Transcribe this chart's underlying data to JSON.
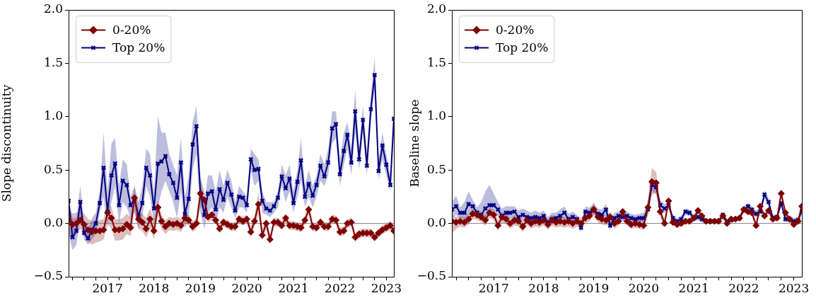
{
  "chart_data": [
    {
      "type": "line",
      "ylabel": "Slope discontinuity",
      "legend": "top left",
      "grid": false,
      "x": [
        "2016-03",
        "2016-04",
        "2016-05",
        "2016-06",
        "2016-07",
        "2016-08",
        "2016-09",
        "2016-10",
        "2016-11",
        "2016-12",
        "2017-01",
        "2017-02",
        "2017-03",
        "2017-04",
        "2017-05",
        "2017-06",
        "2017-07",
        "2017-08",
        "2017-09",
        "2017-10",
        "2017-11",
        "2017-12",
        "2018-01",
        "2018-02",
        "2018-03",
        "2018-04",
        "2018-05",
        "2018-06",
        "2018-07",
        "2018-08",
        "2018-09",
        "2018-10",
        "2018-11",
        "2018-12",
        "2019-01",
        "2019-02",
        "2019-03",
        "2019-04",
        "2019-05",
        "2019-06",
        "2019-07",
        "2019-08",
        "2019-09",
        "2019-10",
        "2019-11",
        "2019-12",
        "2020-01",
        "2020-02",
        "2020-03",
        "2020-04",
        "2020-05",
        "2020-06",
        "2020-07",
        "2020-08",
        "2020-09",
        "2020-10",
        "2020-11",
        "2020-12",
        "2021-01",
        "2021-02",
        "2021-03",
        "2021-04",
        "2021-05",
        "2021-06",
        "2021-07",
        "2021-08",
        "2021-09",
        "2021-10",
        "2021-11",
        "2021-12",
        "2022-01",
        "2022-02",
        "2022-03",
        "2022-04",
        "2022-05",
        "2022-06",
        "2022-07",
        "2022-08",
        "2022-09",
        "2022-10",
        "2022-11",
        "2022-12",
        "2023-01",
        "2023-02",
        "2023-03"
      ],
      "xlim": [
        "2016-03",
        "2023-03"
      ],
      "xticks": [
        {
          "value": "2016-04",
          "label": null
        },
        {
          "value": "2016-07",
          "label": null
        },
        {
          "value": "2016-10",
          "label": null
        },
        "2017",
        {
          "value": "2017-04",
          "label": null
        },
        {
          "value": "2017-07",
          "label": null
        },
        {
          "value": "2017-10",
          "label": null
        },
        "2018",
        {
          "value": "2018-04",
          "label": null
        },
        {
          "value": "2018-07",
          "label": null
        },
        {
          "value": "2018-10",
          "label": null
        },
        "2019",
        {
          "value": "2019-04",
          "label": null
        },
        {
          "value": "2019-07",
          "label": null
        },
        {
          "value": "2019-10",
          "label": null
        },
        "2020",
        {
          "value": "2020-04",
          "label": null
        },
        {
          "value": "2020-07",
          "label": null
        },
        {
          "value": "2020-10",
          "label": null
        },
        "2021",
        {
          "value": "2021-04",
          "label": null
        },
        {
          "value": "2021-07",
          "label": null
        },
        {
          "value": "2021-10",
          "label": null
        },
        "2022",
        {
          "value": "2022-04",
          "label": null
        },
        {
          "value": "2022-07",
          "label": null
        },
        {
          "value": "2022-10",
          "label": null
        },
        "2023"
      ],
      "ylim": [
        -0.5,
        2.0
      ],
      "yticks": [
        {
          "value": -0.5,
          "label": "−0.5"
        },
        {
          "value": 0,
          "label": "0.0"
        },
        {
          "value": 0.5,
          "label": "0.5"
        },
        {
          "value": 1,
          "label": "1.0"
        },
        {
          "value": 1.5,
          "label": "1.5"
        },
        {
          "value": 2,
          "label": "2.0"
        }
      ],
      "ref_lines": [
        {
          "axis": "y",
          "value": 0,
          "color": "#808080"
        }
      ],
      "series": [
        {
          "name": "0-20%",
          "color": "#800000",
          "marker": "diamond",
          "values": [
            0.03,
            -0.01,
            0.0,
            0.03,
            -0.01,
            -0.06,
            -0.08,
            -0.07,
            -0.07,
            -0.06,
            0.1,
            0.05,
            -0.06,
            -0.06,
            -0.05,
            -0.01,
            -0.04,
            0.24,
            0.04,
            0.01,
            -0.05,
            0.04,
            -0.07,
            0.15,
            0.02,
            -0.03,
            0.0,
            -0.01,
            0.0,
            -0.02,
            0.05,
            0.03,
            -0.03,
            0.0,
            0.28,
            0.22,
            0.06,
            0.08,
            0.03,
            -0.05,
            0.01,
            -0.01,
            -0.03,
            -0.03,
            0.04,
            0.02,
            0.04,
            -0.08,
            0.02,
            0.18,
            -0.11,
            0.0,
            -0.15,
            0.01,
            0.01,
            -0.02,
            0.05,
            -0.02,
            -0.02,
            -0.03,
            -0.04,
            0.03,
            0.13,
            -0.03,
            -0.04,
            0.01,
            -0.03,
            -0.03,
            0.04,
            0.03,
            -0.08,
            -0.07,
            0.0,
            0.01,
            -0.13,
            -0.1,
            -0.09,
            -0.09,
            -0.09,
            -0.13,
            -0.09,
            -0.06,
            -0.04,
            -0.02,
            -0.07
          ],
          "upper": [
            0.13,
            0.09,
            0.1,
            0.13,
            0.09,
            0.04,
            0.02,
            0.03,
            0.03,
            0.04,
            0.2,
            0.15,
            0.04,
            0.04,
            0.05,
            0.09,
            0.06,
            0.35,
            0.14,
            0.09,
            0.05,
            0.14,
            0.03,
            0.22,
            0.08,
            0.03,
            0.06,
            0.05,
            0.06,
            0.04,
            0.1,
            0.08,
            0.02,
            0.05,
            0.42,
            0.3,
            0.1,
            0.12,
            0.07,
            -0.01,
            0.05,
            0.03,
            0.01,
            0.01,
            0.08,
            0.06,
            0.08,
            -0.03,
            0.07,
            0.29,
            -0.06,
            0.05,
            -0.1,
            0.05,
            0.05,
            0.02,
            0.09,
            0.02,
            0.02,
            0.01,
            0.0,
            0.07,
            0.18,
            0.01,
            0.0,
            0.05,
            0.01,
            0.01,
            0.08,
            0.07,
            -0.04,
            -0.03,
            0.04,
            0.05,
            -0.09,
            -0.06,
            -0.05,
            -0.05,
            -0.05,
            -0.09,
            -0.05,
            -0.02,
            0.0,
            0.02,
            -0.03
          ],
          "lower": [
            -0.1,
            -0.13,
            -0.1,
            -0.05,
            -0.12,
            -0.17,
            -0.2,
            -0.18,
            -0.17,
            -0.15,
            0.0,
            -0.05,
            -0.16,
            -0.16,
            -0.15,
            -0.1,
            -0.12,
            0.12,
            -0.05,
            -0.07,
            -0.13,
            -0.04,
            -0.15,
            0.07,
            -0.05,
            -0.1,
            -0.06,
            -0.07,
            -0.06,
            -0.08,
            0.0,
            -0.02,
            -0.08,
            -0.05,
            0.15,
            0.14,
            0.01,
            0.03,
            -0.01,
            -0.09,
            -0.03,
            -0.05,
            -0.07,
            -0.07,
            0.0,
            -0.02,
            0.0,
            -0.13,
            -0.03,
            0.08,
            -0.16,
            -0.05,
            -0.2,
            -0.03,
            -0.03,
            -0.06,
            0.01,
            -0.06,
            -0.06,
            -0.07,
            -0.08,
            -0.01,
            0.08,
            -0.07,
            -0.08,
            -0.03,
            -0.07,
            -0.07,
            0.0,
            -0.01,
            -0.12,
            -0.11,
            -0.04,
            -0.03,
            -0.17,
            -0.14,
            -0.13,
            -0.13,
            -0.13,
            -0.17,
            -0.13,
            -0.1,
            -0.08,
            -0.06,
            -0.11
          ]
        },
        {
          "name": "Top 20%",
          "color": "#000080",
          "marker": "cross",
          "values": [
            0.21,
            -0.13,
            -0.07,
            0.2,
            -0.09,
            -0.14,
            -0.06,
            0.0,
            0.19,
            0.52,
            0.11,
            0.45,
            0.56,
            0.17,
            0.4,
            0.36,
            0.17,
            0.23,
            0.07,
            0.19,
            0.52,
            0.45,
            0.14,
            0.56,
            0.58,
            0.63,
            0.46,
            0.38,
            0.24,
            0.57,
            0.09,
            0.23,
            0.74,
            0.91,
            0.28,
            0.08,
            0.28,
            0.3,
            0.13,
            0.32,
            0.22,
            0.38,
            0.27,
            0.12,
            0.25,
            0.24,
            0.17,
            0.6,
            0.5,
            0.51,
            0.21,
            0.14,
            0.12,
            0.16,
            0.24,
            0.44,
            0.33,
            0.42,
            0.19,
            0.39,
            0.59,
            0.25,
            0.37,
            0.26,
            0.36,
            0.54,
            0.44,
            0.57,
            0.89,
            0.93,
            0.46,
            0.68,
            0.83,
            0.57,
            1.05,
            0.6,
            0.97,
            0.54,
            1.07,
            1.39,
            0.49,
            0.73,
            0.55,
            0.36,
            0.98
          ],
          "upper": [
            0.25,
            0.05,
            0.05,
            0.35,
            0.0,
            -0.05,
            0.05,
            0.1,
            0.3,
            0.85,
            0.3,
            0.75,
            0.8,
            0.35,
            0.6,
            0.55,
            0.25,
            0.35,
            0.2,
            0.35,
            0.7,
            0.65,
            0.3,
            1.0,
            0.85,
            0.85,
            0.65,
            0.55,
            0.45,
            0.8,
            0.25,
            0.45,
            0.95,
            1.1,
            0.45,
            0.2,
            0.45,
            0.45,
            0.3,
            0.5,
            0.35,
            0.5,
            0.4,
            0.2,
            0.35,
            0.3,
            0.25,
            0.7,
            0.65,
            0.6,
            0.3,
            0.2,
            0.2,
            0.2,
            0.3,
            0.55,
            0.45,
            0.55,
            0.3,
            0.5,
            0.8,
            0.35,
            0.5,
            0.35,
            0.45,
            0.65,
            0.55,
            0.7,
            1.05,
            1.05,
            0.6,
            0.85,
            0.95,
            0.7,
            1.25,
            0.7,
            1.1,
            0.65,
            1.2,
            1.55,
            0.6,
            0.85,
            0.65,
            0.45,
            1.05
          ],
          "lower": [
            -0.1,
            -0.25,
            -0.2,
            0.05,
            -0.15,
            -0.2,
            -0.15,
            -0.1,
            0.1,
            0.25,
            -0.05,
            0.2,
            0.35,
            0.0,
            0.2,
            0.15,
            0.05,
            0.1,
            -0.05,
            0.05,
            0.35,
            0.25,
            0.0,
            0.15,
            0.3,
            0.4,
            0.3,
            0.2,
            0.05,
            0.3,
            -0.05,
            0.05,
            0.5,
            0.65,
            0.1,
            -0.05,
            0.1,
            0.15,
            0.0,
            0.15,
            0.1,
            0.25,
            0.15,
            0.05,
            0.15,
            0.15,
            0.1,
            0.5,
            0.35,
            0.4,
            0.1,
            0.08,
            0.06,
            0.1,
            0.15,
            0.35,
            0.2,
            0.3,
            0.1,
            0.25,
            0.4,
            0.15,
            0.25,
            0.15,
            0.25,
            0.4,
            0.35,
            0.45,
            0.75,
            0.8,
            0.35,
            0.55,
            0.7,
            0.45,
            0.85,
            0.5,
            0.85,
            0.45,
            0.95,
            1.25,
            0.4,
            0.6,
            0.45,
            0.3,
            0.9
          ]
        }
      ]
    },
    {
      "type": "line",
      "ylabel": "Baseline slope",
      "legend": "top left",
      "grid": false,
      "x": [
        "2016-03",
        "2016-04",
        "2016-05",
        "2016-06",
        "2016-07",
        "2016-08",
        "2016-09",
        "2016-10",
        "2016-11",
        "2016-12",
        "2017-01",
        "2017-02",
        "2017-03",
        "2017-04",
        "2017-05",
        "2017-06",
        "2017-07",
        "2017-08",
        "2017-09",
        "2017-10",
        "2017-11",
        "2017-12",
        "2018-01",
        "2018-02",
        "2018-03",
        "2018-04",
        "2018-05",
        "2018-06",
        "2018-07",
        "2018-08",
        "2018-09",
        "2018-10",
        "2018-11",
        "2018-12",
        "2019-01",
        "2019-02",
        "2019-03",
        "2019-04",
        "2019-05",
        "2019-06",
        "2019-07",
        "2019-08",
        "2019-09",
        "2019-10",
        "2019-11",
        "2019-12",
        "2020-01",
        "2020-02",
        "2020-03",
        "2020-04",
        "2020-05",
        "2020-06",
        "2020-07",
        "2020-08",
        "2020-09",
        "2020-10",
        "2020-11",
        "2020-12",
        "2021-01",
        "2021-02",
        "2021-03",
        "2021-04",
        "2021-05",
        "2021-06",
        "2021-07",
        "2021-08",
        "2021-09",
        "2021-10",
        "2021-11",
        "2021-12",
        "2022-01",
        "2022-02",
        "2022-03",
        "2022-04",
        "2022-05",
        "2022-06",
        "2022-07",
        "2022-08",
        "2022-09",
        "2022-10",
        "2022-11",
        "2022-12",
        "2023-01",
        "2023-02",
        "2023-03"
      ],
      "xlim": [
        "2016-03",
        "2023-03"
      ],
      "xticks": [
        {
          "value": "2016-04",
          "label": null
        },
        {
          "value": "2016-07",
          "label": null
        },
        {
          "value": "2016-10",
          "label": null
        },
        "2017",
        {
          "value": "2017-04",
          "label": null
        },
        {
          "value": "2017-07",
          "label": null
        },
        {
          "value": "2017-10",
          "label": null
        },
        "2018",
        {
          "value": "2018-04",
          "label": null
        },
        {
          "value": "2018-07",
          "label": null
        },
        {
          "value": "2018-10",
          "label": null
        },
        "2019",
        {
          "value": "2019-04",
          "label": null
        },
        {
          "value": "2019-07",
          "label": null
        },
        {
          "value": "2019-10",
          "label": null
        },
        "2020",
        {
          "value": "2020-04",
          "label": null
        },
        {
          "value": "2020-07",
          "label": null
        },
        {
          "value": "2020-10",
          "label": null
        },
        "2021",
        {
          "value": "2021-04",
          "label": null
        },
        {
          "value": "2021-07",
          "label": null
        },
        {
          "value": "2021-10",
          "label": null
        },
        "2022",
        {
          "value": "2022-04",
          "label": null
        },
        {
          "value": "2022-07",
          "label": null
        },
        {
          "value": "2022-10",
          "label": null
        },
        "2023"
      ],
      "ylim": [
        -0.5,
        2.0
      ],
      "yticks": [
        {
          "value": -0.5,
          "label": "−0.5"
        },
        {
          "value": 0,
          "label": "0.0"
        },
        {
          "value": 0.5,
          "label": "0.5"
        },
        {
          "value": 1,
          "label": "1.0"
        },
        {
          "value": 1.5,
          "label": "1.5"
        },
        {
          "value": 2,
          "label": "2.0"
        }
      ],
      "ref_lines": [
        {
          "axis": "y",
          "value": 0,
          "color": "#808080"
        }
      ],
      "series": [
        {
          "name": "0-20%",
          "color": "#800000",
          "marker": "diamond",
          "values": [
            0.02,
            0.01,
            0.02,
            0.01,
            0.04,
            0.09,
            0.08,
            0.06,
            0.03,
            0.1,
            0.08,
            -0.02,
            0.06,
            0.04,
            0.0,
            0.03,
            0.02,
            -0.03,
            0.03,
            0.0,
            0.02,
            0.01,
            0.03,
            -0.01,
            0.03,
            0.01,
            0.02,
            0.01,
            0.02,
            0.0,
            0.02,
            0.0,
            0.05,
            0.07,
            0.13,
            0.06,
            0.04,
            0.03,
            0.06,
            0.0,
            0.02,
            0.11,
            0.02,
            -0.01,
            0.0,
            -0.01,
            -0.02,
            0.15,
            0.39,
            0.38,
            0.11,
            0.0,
            0.21,
            0.01,
            -0.01,
            0.0,
            0.02,
            0.02,
            0.05,
            0.12,
            0.07,
            0.02,
            0.02,
            0.02,
            0.02,
            0.07,
            0.0,
            0.04,
            0.04,
            0.05,
            0.13,
            0.11,
            0.1,
            -0.02,
            0.16,
            0.07,
            0.12,
            0.04,
            0.05,
            0.28,
            0.1,
            0.04,
            -0.01,
            0.02,
            0.16
          ],
          "upper": [
            0.08,
            0.06,
            0.07,
            0.06,
            0.09,
            0.14,
            0.13,
            0.11,
            0.08,
            0.15,
            0.13,
            0.03,
            0.11,
            0.09,
            0.05,
            0.08,
            0.07,
            0.02,
            0.08,
            0.05,
            0.07,
            0.06,
            0.08,
            0.04,
            0.08,
            0.06,
            0.07,
            0.06,
            0.07,
            0.05,
            0.07,
            0.05,
            0.1,
            0.12,
            0.2,
            0.11,
            0.09,
            0.08,
            0.11,
            0.05,
            0.06,
            0.15,
            0.06,
            0.03,
            0.04,
            0.03,
            0.03,
            0.22,
            0.52,
            0.48,
            0.16,
            0.04,
            0.25,
            0.04,
            0.02,
            0.03,
            0.05,
            0.05,
            0.08,
            0.15,
            0.1,
            0.04,
            0.04,
            0.04,
            0.04,
            0.1,
            0.02,
            0.06,
            0.06,
            0.07,
            0.16,
            0.14,
            0.13,
            0.02,
            0.2,
            0.1,
            0.15,
            0.07,
            0.08,
            0.32,
            0.13,
            0.07,
            0.02,
            0.05,
            0.19
          ],
          "lower": [
            -0.1,
            -0.05,
            -0.03,
            -0.04,
            -0.01,
            0.04,
            0.03,
            0.01,
            -0.02,
            0.05,
            0.03,
            -0.07,
            0.01,
            -0.01,
            -0.05,
            -0.02,
            -0.03,
            -0.08,
            -0.02,
            -0.05,
            -0.03,
            -0.04,
            -0.02,
            -0.06,
            -0.02,
            -0.04,
            -0.03,
            -0.04,
            -0.03,
            -0.05,
            -0.03,
            -0.05,
            0.0,
            0.02,
            0.08,
            0.01,
            -0.01,
            -0.02,
            0.01,
            -0.05,
            -0.02,
            0.07,
            -0.02,
            -0.05,
            -0.04,
            -0.05,
            -0.06,
            0.08,
            0.27,
            0.28,
            0.06,
            -0.04,
            0.17,
            -0.02,
            -0.04,
            -0.03,
            -0.01,
            -0.01,
            0.02,
            0.09,
            0.04,
            0.0,
            0.0,
            0.0,
            0.0,
            0.04,
            -0.02,
            0.02,
            0.02,
            0.03,
            0.1,
            0.08,
            0.07,
            -0.05,
            0.12,
            0.04,
            0.09,
            0.01,
            0.02,
            0.24,
            0.07,
            0.01,
            -0.04,
            -0.01,
            0.13
          ]
        },
        {
          "name": "Top 20%",
          "color": "#000080",
          "marker": "cross",
          "values": [
            0.13,
            0.16,
            0.1,
            0.1,
            0.18,
            0.16,
            0.1,
            0.08,
            0.14,
            0.17,
            0.17,
            0.13,
            0.07,
            0.1,
            0.1,
            0.11,
            0.06,
            0.08,
            0.06,
            0.05,
            0.06,
            0.05,
            0.07,
            0.01,
            0.04,
            0.05,
            0.07,
            0.1,
            0.04,
            0.06,
            0.04,
            -0.04,
            0.11,
            0.1,
            0.13,
            0.09,
            0.08,
            0.13,
            -0.02,
            0.05,
            0.07,
            0.06,
            0.07,
            0.05,
            0.04,
            0.05,
            0.05,
            0.13,
            0.36,
            0.34,
            0.17,
            0.14,
            0.17,
            0.05,
            0.02,
            0.04,
            0.11,
            0.1,
            0.05,
            0.06,
            0.04,
            0.02,
            0.02,
            0.02,
            0.02,
            0.08,
            0.02,
            0.03,
            0.04,
            0.05,
            0.13,
            0.16,
            0.13,
            0.09,
            0.11,
            0.27,
            0.2,
            0.05,
            0.06,
            0.19,
            0.04,
            0.04,
            0.02,
            0.03,
            0.12
          ],
          "upper": [
            0.2,
            0.26,
            0.15,
            0.2,
            0.3,
            0.22,
            0.15,
            0.2,
            0.3,
            0.36,
            0.28,
            0.2,
            0.14,
            0.16,
            0.16,
            0.16,
            0.12,
            0.14,
            0.12,
            0.1,
            0.12,
            0.1,
            0.12,
            0.06,
            0.1,
            0.1,
            0.13,
            0.16,
            0.09,
            0.11,
            0.08,
            0.0,
            0.16,
            0.15,
            0.18,
            0.14,
            0.13,
            0.18,
            0.03,
            0.1,
            0.11,
            0.1,
            0.11,
            0.09,
            0.08,
            0.09,
            0.1,
            0.2,
            0.42,
            0.4,
            0.22,
            0.18,
            0.21,
            0.08,
            0.05,
            0.07,
            0.14,
            0.13,
            0.08,
            0.09,
            0.07,
            0.04,
            0.04,
            0.04,
            0.04,
            0.1,
            0.04,
            0.05,
            0.06,
            0.07,
            0.16,
            0.19,
            0.16,
            0.12,
            0.15,
            0.31,
            0.24,
            0.08,
            0.09,
            0.22,
            0.07,
            0.07,
            0.05,
            0.06,
            0.16
          ],
          "lower": [
            0.05,
            0.08,
            0.05,
            0.04,
            0.08,
            0.08,
            0.05,
            0.03,
            0.06,
            0.08,
            0.08,
            0.07,
            0.02,
            0.05,
            0.05,
            0.06,
            0.02,
            0.03,
            0.02,
            0.01,
            0.02,
            0.01,
            0.03,
            -0.03,
            0.0,
            0.01,
            0.03,
            0.05,
            0.0,
            0.02,
            0.0,
            -0.08,
            0.06,
            0.06,
            0.08,
            0.05,
            0.04,
            0.08,
            -0.06,
            0.01,
            0.03,
            0.02,
            0.03,
            0.02,
            0.01,
            0.02,
            0.01,
            0.07,
            0.3,
            0.28,
            0.12,
            0.1,
            0.13,
            0.02,
            -0.01,
            0.01,
            0.08,
            0.07,
            0.02,
            0.03,
            0.01,
            0.0,
            0.0,
            0.0,
            0.0,
            0.06,
            0.0,
            0.01,
            0.02,
            0.03,
            0.1,
            0.13,
            0.1,
            0.06,
            0.07,
            0.23,
            0.16,
            0.02,
            0.03,
            0.16,
            0.01,
            0.01,
            -0.01,
            0.0,
            0.08
          ]
        }
      ]
    }
  ]
}
